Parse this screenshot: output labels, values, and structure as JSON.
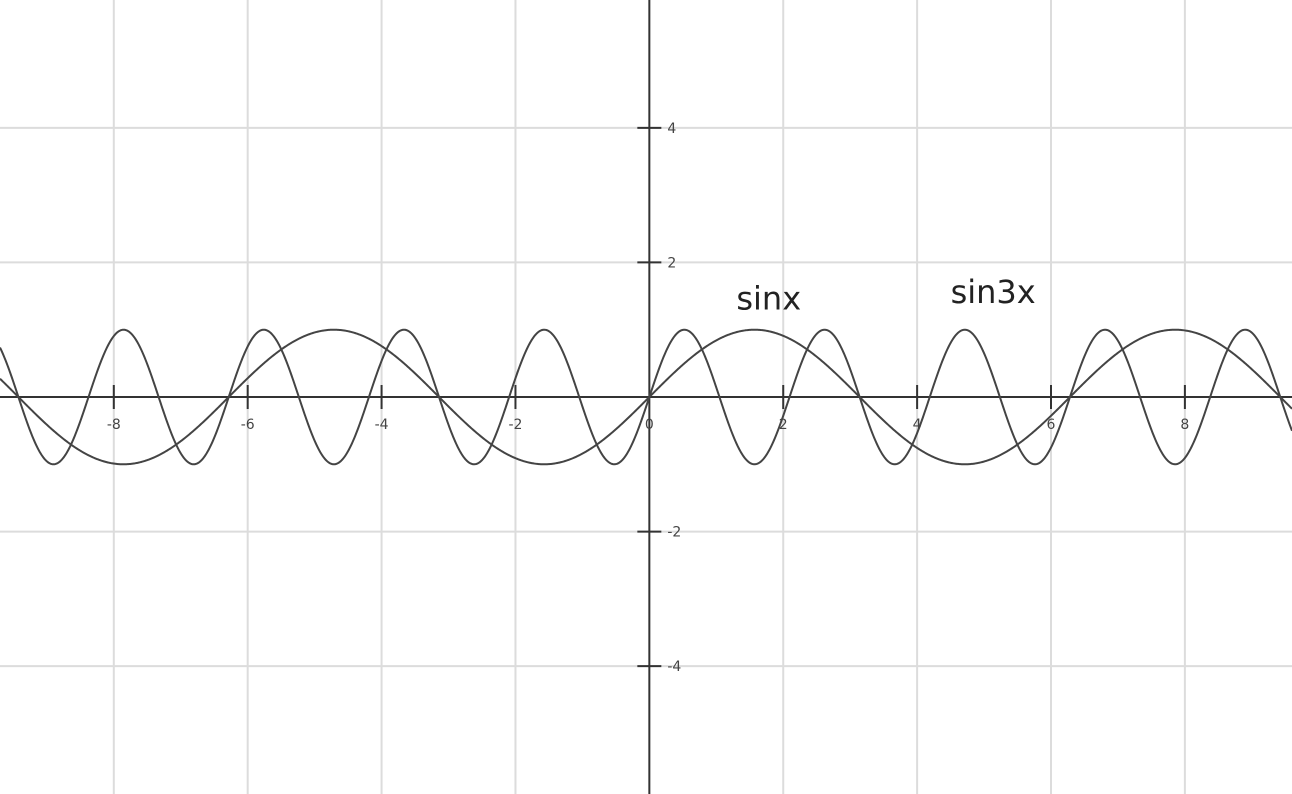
{
  "chart_data": {
    "type": "line",
    "xlim": [
      -9.7,
      9.6
    ],
    "ylim": [
      -5.9,
      5.9
    ],
    "grid": true,
    "x_ticks": [
      {
        "value": -8,
        "label": "-8"
      },
      {
        "value": -6,
        "label": "-6"
      },
      {
        "value": -4,
        "label": "-4"
      },
      {
        "value": -2,
        "label": "-2"
      },
      {
        "value": 0,
        "label": "0"
      },
      {
        "value": 2,
        "label": "2"
      },
      {
        "value": 4,
        "label": "4"
      },
      {
        "value": 6,
        "label": "6"
      },
      {
        "value": 8,
        "label": "8"
      }
    ],
    "y_ticks": [
      {
        "value": 4,
        "label": "4"
      },
      {
        "value": 2,
        "label": "2"
      },
      {
        "value": -2,
        "label": "-2"
      },
      {
        "value": -4,
        "label": "-4"
      }
    ],
    "series": [
      {
        "name": "sinx",
        "function": "sin(x)",
        "frequency": 1,
        "amplitude": 1
      },
      {
        "name": "sin3x",
        "function": "sin(3x)",
        "frequency": 3,
        "amplitude": 1
      }
    ],
    "annotations": [
      {
        "text": "sinx",
        "x": 1.3,
        "y": 1.3
      },
      {
        "text": "sin3x",
        "x": 4.5,
        "y": 1.4
      }
    ]
  }
}
